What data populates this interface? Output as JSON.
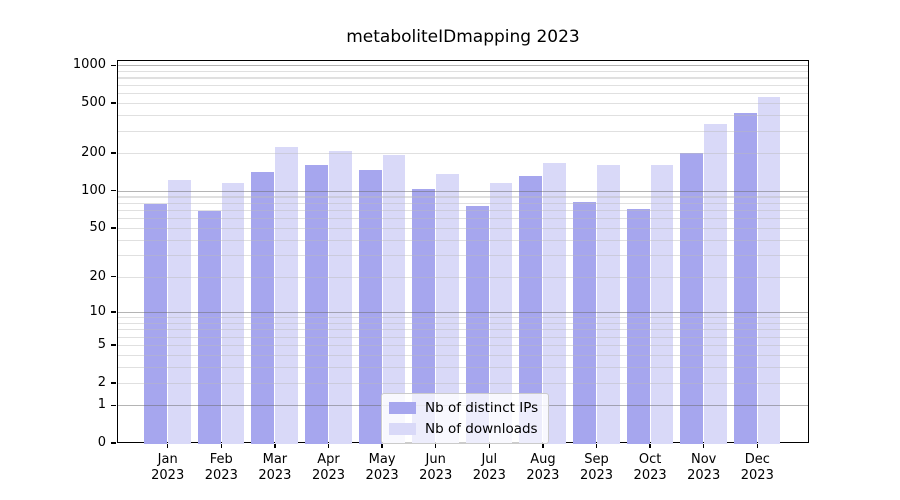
{
  "chart_data": {
    "type": "bar",
    "title": "metaboliteIDmapping 2023",
    "categories": [
      "Jan 2023",
      "Feb 2023",
      "Mar 2023",
      "Apr 2023",
      "May 2023",
      "Jun 2023",
      "Jul 2023",
      "Aug 2023",
      "Sep 2023",
      "Oct 2023",
      "Nov 2023",
      "Dec 2023"
    ],
    "x_tick_months": [
      "Jan",
      "Feb",
      "Mar",
      "Apr",
      "May",
      "Jun",
      "Jul",
      "Aug",
      "Sep",
      "Oct",
      "Nov",
      "Dec"
    ],
    "x_tick_year": "2023",
    "series": [
      {
        "name": "Nb of distinct IPs",
        "color": "#a6a6ee",
        "values": [
          79,
          70,
          145,
          164,
          149,
          106,
          76,
          134,
          83,
          72,
          203,
          427
        ]
      },
      {
        "name": "Nb of downloads",
        "color": "#d9d9f8",
        "values": [
          125,
          118,
          228,
          210,
          197,
          138,
          117,
          170,
          164,
          164,
          347,
          573
        ]
      }
    ],
    "y_axis": {
      "scale": "log1p",
      "tick_values": [
        0,
        1,
        2,
        5,
        10,
        20,
        50,
        100,
        200,
        500,
        1000
      ],
      "major_gridlines": [
        1,
        10,
        100,
        1000
      ],
      "minor_gridline_decades": [
        1,
        10,
        100
      ],
      "ylim": [
        0,
        1100
      ]
    },
    "xlabel": "",
    "ylabel": "",
    "legend": {
      "position": "lower center"
    },
    "grid": "on"
  },
  "colors": {
    "background": "#ffffff",
    "spine": "#000000",
    "bar_distinct_ips": "#a6a6ee",
    "bar_downloads": "#d9d9f8",
    "grid_major": "#c3c3c3",
    "grid_minor": "#ebebeb"
  }
}
